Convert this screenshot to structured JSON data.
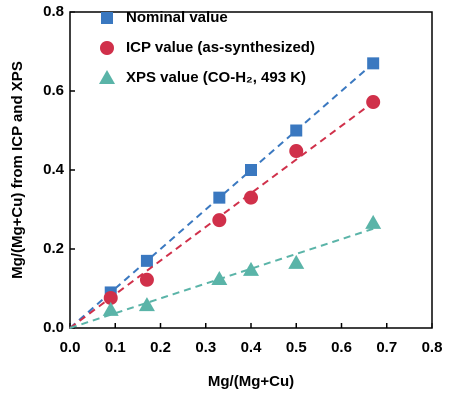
{
  "chart_data": {
    "type": "scatter",
    "xlabel": "Mg/(Mg+Cu)",
    "ylabel": "Mg/(Mg+Cu) from ICP and XPS",
    "xlim": [
      0,
      0.8
    ],
    "ylim": [
      0,
      0.8
    ],
    "xticks": [
      {
        "value": 0,
        "label": "0.0"
      },
      0.1,
      0.2,
      0.3,
      0.4,
      0.5,
      0.6,
      0.7,
      0.8
    ],
    "yticks": [
      {
        "value": 0,
        "label": "0.0"
      },
      0.2,
      0.4,
      0.6,
      0.8
    ],
    "series": [
      {
        "name": "Nominal value",
        "color": "#3a78c0",
        "marker": "square",
        "x": [
          0.09,
          0.17,
          0.33,
          0.4,
          0.5,
          0.67
        ],
        "values": [
          0.09,
          0.17,
          0.33,
          0.4,
          0.5,
          0.67
        ],
        "fit": {
          "x": [
            0,
            0.68
          ],
          "y": [
            0,
            0.68
          ]
        }
      },
      {
        "name": "ICP value (as-synthesized)",
        "color": "#d0304a",
        "marker": "circle",
        "x": [
          0.09,
          0.17,
          0.33,
          0.4,
          0.5,
          0.67
        ],
        "values": [
          0.076,
          0.122,
          0.273,
          0.33,
          0.448,
          0.572
        ],
        "fit": {
          "x": [
            0,
            0.68
          ],
          "y": [
            0,
            0.58
          ]
        }
      },
      {
        "name": "XPS value (CO-H₂, 493 K)",
        "color": "#5ab4a8",
        "marker": "triangle",
        "x": [
          0.09,
          0.17,
          0.33,
          0.4,
          0.5,
          0.67
        ],
        "values": [
          0.046,
          0.058,
          0.124,
          0.147,
          0.165,
          0.266
        ],
        "fit": {
          "x": [
            0,
            0.68
          ],
          "y": [
            0,
            0.255
          ]
        }
      }
    ]
  }
}
